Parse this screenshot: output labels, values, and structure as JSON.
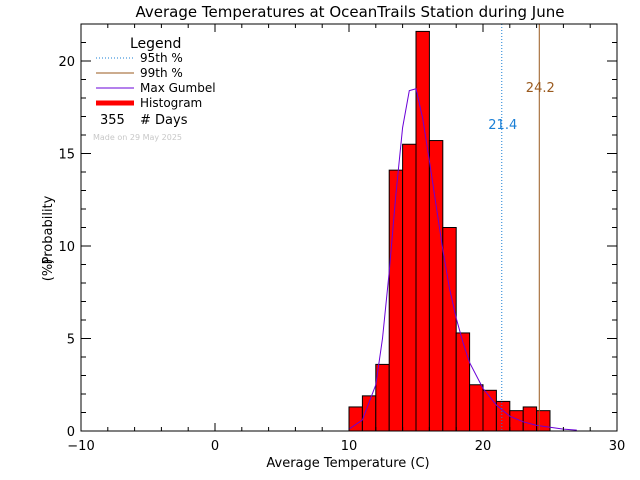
{
  "chart_data": {
    "type": "bar",
    "title": "Average Temperatures at OceanTrails Station during June",
    "xlabel": "Average Temperature (C)",
    "ylabel": "Probability",
    "ylabel_unit": "(%)",
    "xlim": [
      -10,
      30
    ],
    "ylim": [
      0,
      22
    ],
    "x_ticks": [
      -10,
      0,
      10,
      20,
      30
    ],
    "y_ticks": [
      0,
      5,
      10,
      15,
      20
    ],
    "grid": false,
    "legend_position": "top-left",
    "legend": {
      "title": "Legend",
      "entries": [
        {
          "label": "95th %",
          "color": "#1a7fd6",
          "style": "dotted"
        },
        {
          "label": "99th %",
          "color": "#9a5a1e",
          "style": "solid"
        },
        {
          "label": "Max Gumbel",
          "color": "#6a00d8",
          "style": "solid"
        },
        {
          "label": "Histogram",
          "color": "#ff0000",
          "style": "thick"
        }
      ],
      "days_value": "355",
      "days_label": "# Days"
    },
    "made_on": "Made on 29 May 2025",
    "histogram": {
      "bin_width": 1,
      "bin_starts": [
        10,
        11,
        12,
        13,
        14,
        15,
        16,
        17,
        18,
        19,
        20,
        21,
        22,
        23,
        24
      ],
      "values": [
        1.3,
        1.9,
        3.6,
        14.1,
        15.5,
        21.6,
        15.7,
        11.0,
        5.3,
        2.5,
        2.2,
        1.6,
        1.1,
        1.3,
        1.1
      ]
    },
    "gumbel": {
      "x": [
        10,
        11,
        12,
        12.5,
        13,
        13.5,
        14,
        14.5,
        15,
        15.5,
        16,
        16.5,
        17,
        17.5,
        18,
        18.5,
        19,
        20,
        21,
        22,
        23,
        24,
        25,
        26,
        27
      ],
      "y": [
        0.1,
        0.6,
        2.5,
        5.0,
        8.6,
        12.8,
        16.4,
        18.4,
        18.5,
        16.9,
        14.6,
        12.2,
        9.8,
        7.7,
        6.1,
        4.8,
        3.7,
        2.3,
        1.4,
        0.8,
        0.5,
        0.3,
        0.2,
        0.1,
        0.05
      ]
    },
    "percentiles": [
      {
        "name": "95th %",
        "x": 21.4,
        "label": "21.4",
        "color": "#1a7fd6",
        "style": "dotted"
      },
      {
        "name": "99th %",
        "x": 24.2,
        "label": "24.2",
        "color": "#9a5a1e",
        "style": "solid"
      }
    ],
    "colors": {
      "histogram_fill": "#ff0000",
      "histogram_edge": "#000000",
      "gumbel": "#6a00d8"
    }
  }
}
